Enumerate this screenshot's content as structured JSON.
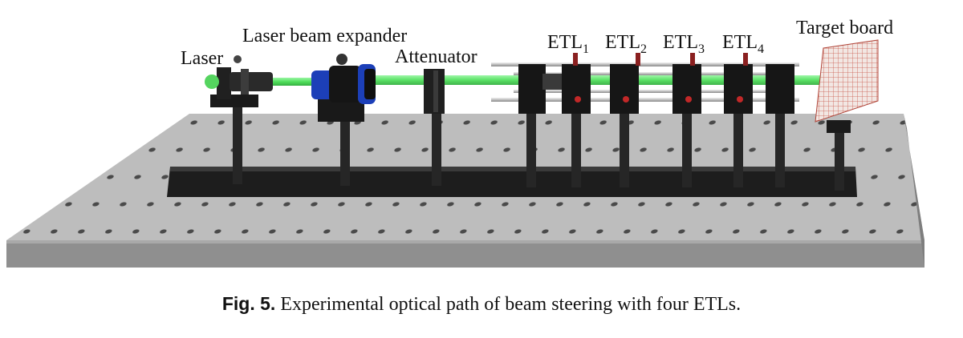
{
  "labels": {
    "laser": "Laser",
    "expander": "Laser beam expander",
    "attenuator": "Attenuator",
    "etl1": {
      "base": "ETL",
      "sub": "1"
    },
    "etl2": {
      "base": "ETL",
      "sub": "2"
    },
    "etl3": {
      "base": "ETL",
      "sub": "3"
    },
    "etl4": {
      "base": "ETL",
      "sub": "4"
    },
    "target": "Target board"
  },
  "caption": {
    "number": "Fig. 5.",
    "text": "Experimental optical path of beam steering with four ETLs."
  },
  "colors": {
    "table_top": "#b9b9b9",
    "table_front": "#8f8f8f",
    "beam": "#3ddc4a",
    "mount": "#1b1b1b",
    "expander_ring": "#1c3fb8",
    "target_grid": "#c9584b"
  }
}
